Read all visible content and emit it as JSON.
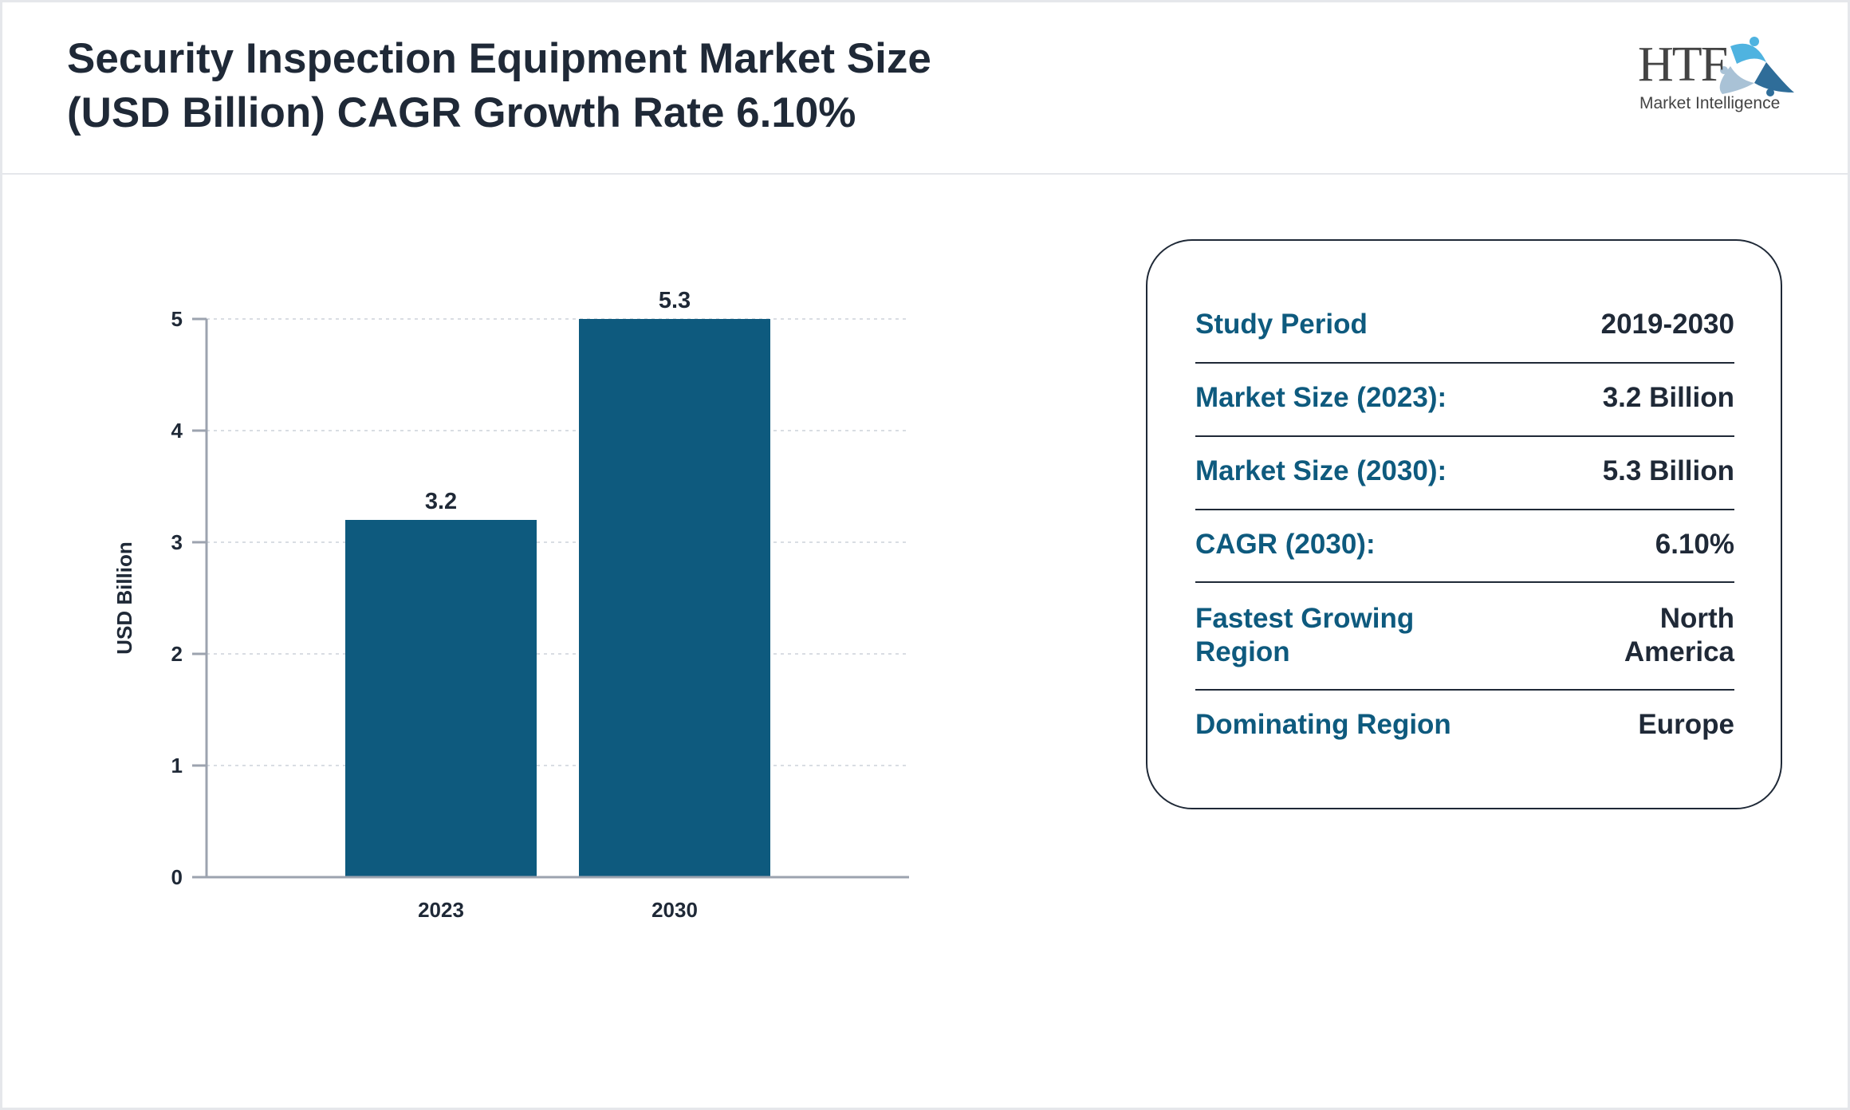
{
  "header": {
    "title_line1": "Security Inspection Equipment Market Size",
    "title_line2": "(USD Billion) CAGR Growth Rate 6.10%"
  },
  "logo": {
    "brand": "HTF",
    "tagline": "Market Intelligence",
    "colors": [
      "#4fb3e0",
      "#a9c2d6",
      "#2f6d99"
    ]
  },
  "chart_data": {
    "type": "bar",
    "categories": [
      "2023",
      "2030"
    ],
    "values": [
      3.2,
      5.3
    ],
    "data_labels": [
      "3.2",
      "5.3"
    ],
    "title": "",
    "xlabel": "",
    "ylabel": "USD Billion",
    "ylim": [
      0,
      5
    ],
    "yticks": [
      0,
      1,
      2,
      3,
      4,
      5
    ],
    "grid": true,
    "bar_color": "#0e5a7e"
  },
  "info": {
    "rows": [
      {
        "label": "Study Period",
        "value": "2019-2030"
      },
      {
        "label": "Market Size (2023):",
        "value": "3.2 Billion"
      },
      {
        "label": "Market Size (2030):",
        "value": "5.3 Billion"
      },
      {
        "label": "CAGR (2030):",
        "value": "6.10%"
      },
      {
        "label": "Fastest Growing Region",
        "value": "North America"
      },
      {
        "label": "Dominating Region",
        "value": "Europe"
      }
    ]
  }
}
